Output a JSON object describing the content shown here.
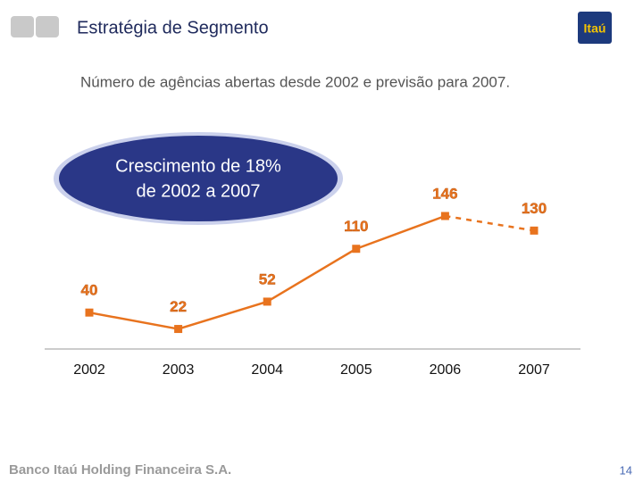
{
  "header": {
    "title": "Estratégia de Segmento",
    "logo": "Itaú"
  },
  "chart_data": {
    "type": "line",
    "subtitle": "Número de agências abertas desde 2002 e previsão para 2007.",
    "annotation": [
      "Crescimento de  18%",
      "de 2002 a 2007"
    ],
    "categories": [
      "2002",
      "2003",
      "2004",
      "2005",
      "2006",
      "2007"
    ],
    "values": [
      40,
      22,
      52,
      110,
      146,
      130
    ],
    "color": "#e8731e",
    "segment_styles": [
      "solid",
      "solid",
      "solid",
      "solid",
      "dashed"
    ]
  },
  "footer": {
    "company": "Banco Itaú Holding Financeira S.A.",
    "page": "14"
  }
}
